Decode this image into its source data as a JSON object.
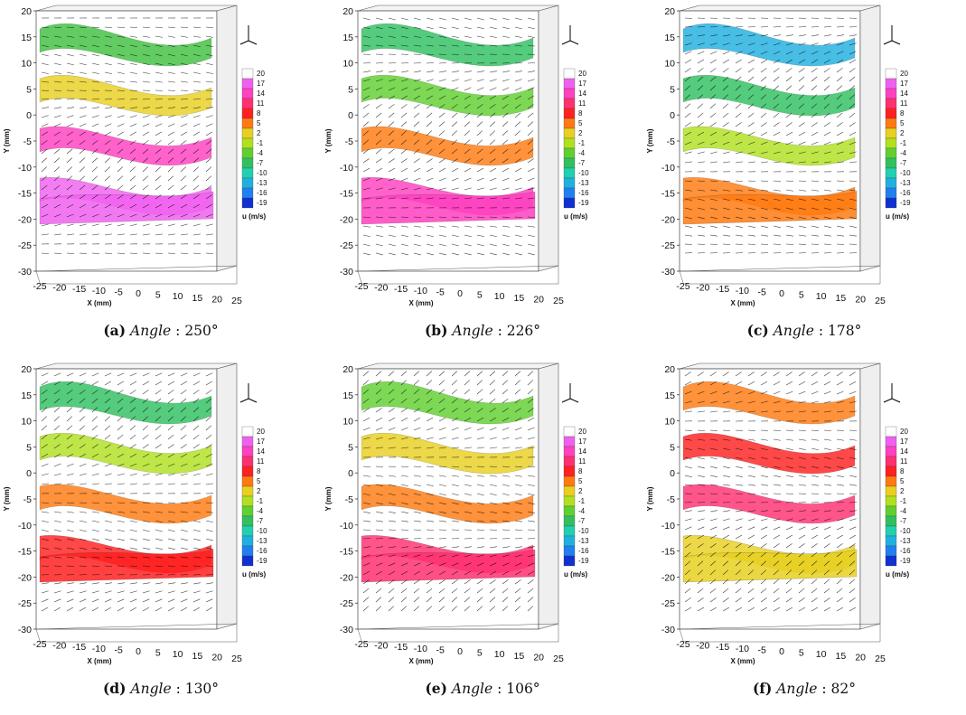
{
  "figure": {
    "colorbar": {
      "levels": [
        "20",
        "17",
        "14",
        "11",
        "8",
        "5",
        "2",
        "-1",
        "-4",
        "-7",
        "-10",
        "-13",
        "-16",
        "-19"
      ],
      "colors": [
        "#ffffff",
        "#f060f0",
        "#ff40c0",
        "#ff3070",
        "#ff2020",
        "#ff7a10",
        "#e8d020",
        "#b0e020",
        "#60d030",
        "#30c060",
        "#20d0b0",
        "#20b0e0",
        "#2080f0",
        "#1030d0"
      ],
      "title": "u (m/s)"
    },
    "y_ticks": [
      "20",
      "15",
      "10",
      "5",
      "0",
      "-5",
      "-10",
      "-15",
      "-20",
      "-25",
      "-30"
    ],
    "x_ticks": [
      "-25",
      "-20",
      "-15",
      "-10",
      "-5",
      "0",
      "5",
      "10",
      "15",
      "20",
      "25"
    ],
    "y_axis_label": "Y (mm)",
    "x_axis_label": "X (mm)",
    "panels": [
      {
        "tag": "(a)",
        "label_italic": "Angle",
        "value": ": 250°",
        "tint": [
          "#40c040",
          "#e8d020",
          "#ff40c0",
          "#f060f0"
        ]
      },
      {
        "tag": "(b)",
        "label_italic": "Angle",
        "value": ": 226°",
        "tint": [
          "#30c060",
          "#60d030",
          "#ff7a10",
          "#ff40c0"
        ]
      },
      {
        "tag": "(c)",
        "label_italic": "Angle",
        "value": ": 178°",
        "tint": [
          "#20b0e0",
          "#30c060",
          "#b0e020",
          "#ff7a10"
        ]
      },
      {
        "tag": "(d)",
        "label_italic": "Angle",
        "value": ": 130°",
        "tint": [
          "#30c060",
          "#b0e020",
          "#ff7a10",
          "#ff2020"
        ]
      },
      {
        "tag": "(e)",
        "label_italic": "Angle",
        "value": ": 106°",
        "tint": [
          "#60d030",
          "#e8d020",
          "#ff7a10",
          "#ff3070"
        ]
      },
      {
        "tag": "(f)",
        "label_italic": "Angle",
        "value": ": 82°",
        "tint": [
          "#ff7a10",
          "#ff2020",
          "#ff3070",
          "#e8d020"
        ]
      }
    ]
  }
}
